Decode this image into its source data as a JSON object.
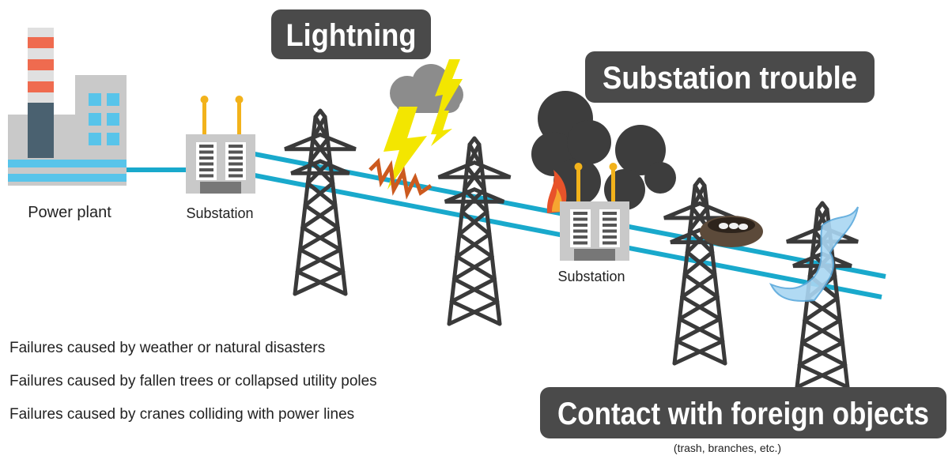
{
  "labels": {
    "power_plant": "Power plant",
    "substation_1": "Substation",
    "substation_2": "Substation",
    "lightning": "Lightning",
    "substation_trouble": "Substation trouble",
    "contact": "Contact with foreign objects",
    "contact_note": "(trash, branches, etc.)"
  },
  "failures": [
    "Failures caused by weather or natural disasters",
    "Failures caused by fallen trees or collapsed utility poles",
    "Failures caused by cranes colliding with power lines"
  ]
}
